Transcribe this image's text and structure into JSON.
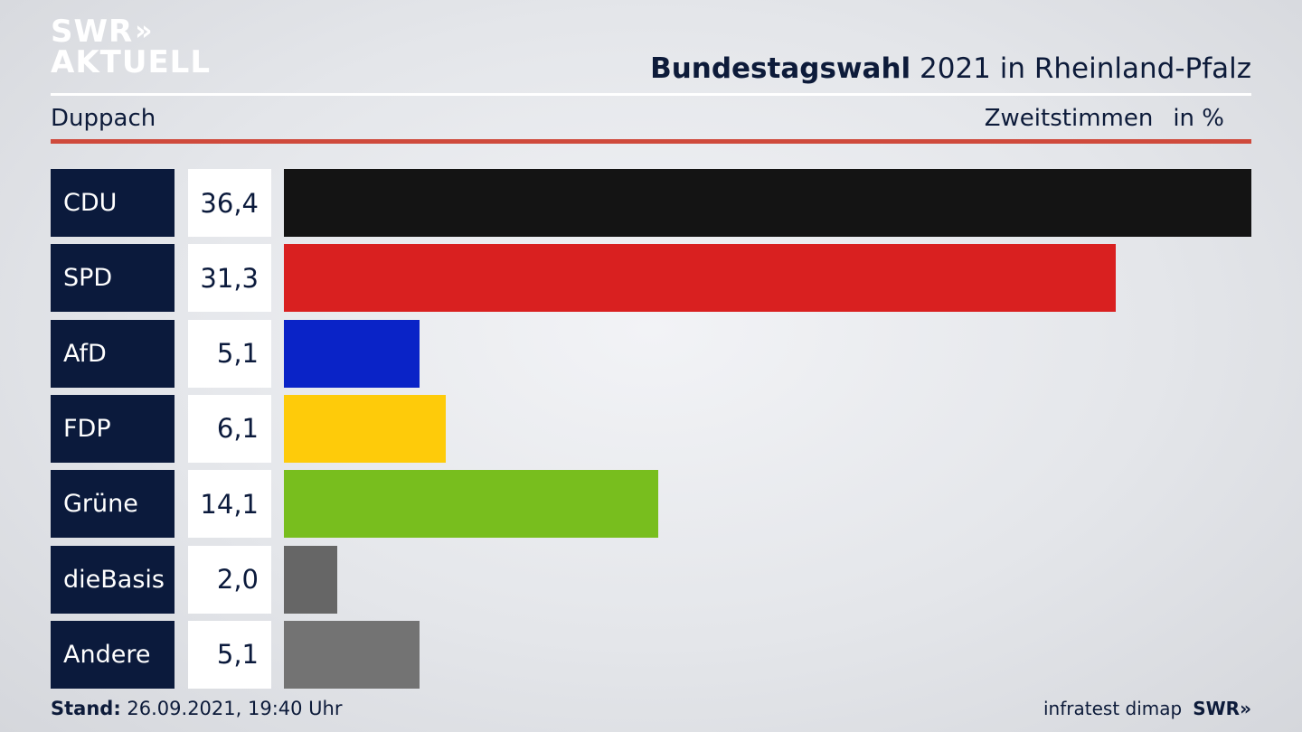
{
  "brand": {
    "logo_line1": "SWR",
    "logo_chevrons": "»",
    "logo_line2": "AKTUELL"
  },
  "header": {
    "title_bold": "Bundestagswahl",
    "title_rest": " 2021 in Rheinland-Pfalz",
    "location": "Duppach",
    "measure": "Zweitstimmen",
    "unit": "in %"
  },
  "colors": {
    "label_bg": "#0b1a3c",
    "accent_rule": "#cf4a3c"
  },
  "chart_data": {
    "type": "bar",
    "orientation": "horizontal",
    "categories": [
      "CDU",
      "SPD",
      "AfD",
      "FDP",
      "Grüne",
      "dieBasis",
      "Andere"
    ],
    "values": [
      36.4,
      31.3,
      5.1,
      6.1,
      14.1,
      2.0,
      5.1
    ],
    "value_labels": [
      "36,4",
      "31,3",
      "5,1",
      "6,1",
      "14,1",
      "2,0",
      "5,1"
    ],
    "bar_colors": [
      "#141414",
      "#d92020",
      "#0a23c7",
      "#fecb0a",
      "#78be1e",
      "#666666",
      "#737373"
    ],
    "title": "Bundestagswahl 2021 in Rheinland-Pfalz",
    "xlabel": "",
    "ylabel": "",
    "xlim": [
      0,
      36.4
    ]
  },
  "footer": {
    "stand_label": "Stand:",
    "stand_value": " 26.09.2021, 19:40 Uhr",
    "source": "infratest dimap",
    "brand": "SWR»"
  }
}
